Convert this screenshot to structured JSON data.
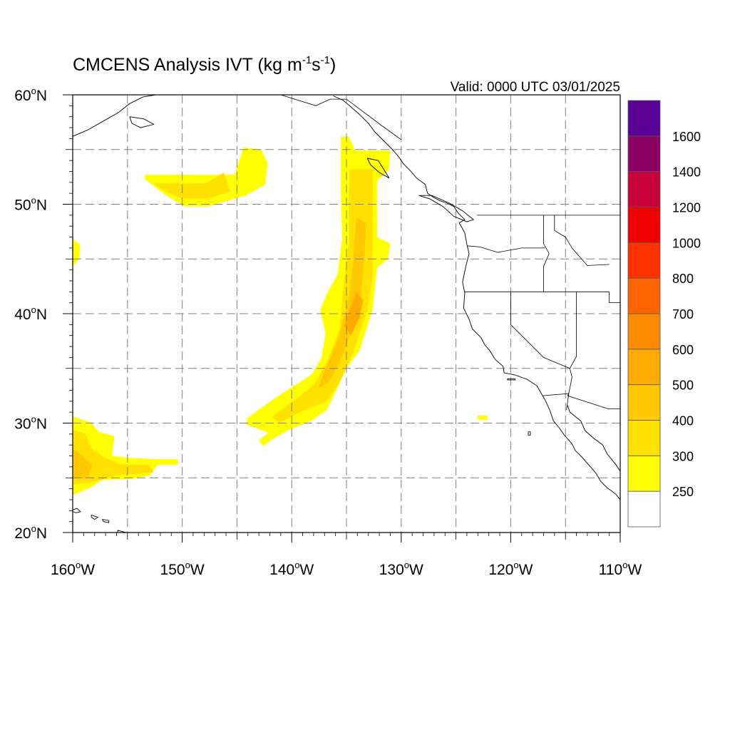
{
  "title": {
    "main": "CMCENS Analysis IVT (kg m",
    "sup1": "-1",
    "mid": "s",
    "sup2": "-1",
    "close": ")"
  },
  "valid_label": "Valid: 0000 UTC 03/01/2025",
  "colors": {
    "levels": [
      "#ffffff",
      "#ffff00",
      "#ffe100",
      "#ffc800",
      "#ffaa00",
      "#ff8c00",
      "#ff6400",
      "#ff3200",
      "#f00000",
      "#c8003c",
      "#8c0064",
      "#5a0096"
    ],
    "coast": "#000000",
    "grid": "#808080"
  },
  "chart_data": {
    "type": "heatmap",
    "variable": "IVT",
    "lon_range": [
      -160,
      -110
    ],
    "lat_range": [
      20,
      60
    ],
    "lat_ticks": [
      {
        "value": 60,
        "num": "60",
        "hem": "N"
      },
      {
        "value": 50,
        "num": "50",
        "hem": "N"
      },
      {
        "value": 40,
        "num": "40",
        "hem": "N"
      },
      {
        "value": 30,
        "num": "30",
        "hem": "N"
      },
      {
        "value": 20,
        "num": "20",
        "hem": "N"
      }
    ],
    "lon_ticks": [
      {
        "value": -160,
        "num": "160",
        "hem": "W"
      },
      {
        "value": -150,
        "num": "150",
        "hem": "W"
      },
      {
        "value": -140,
        "num": "140",
        "hem": "W"
      },
      {
        "value": -130,
        "num": "130",
        "hem": "W"
      },
      {
        "value": -120,
        "num": "120",
        "hem": "W"
      },
      {
        "value": -110,
        "num": "110",
        "hem": "W"
      }
    ],
    "colorbar_labels": [
      "250",
      "300",
      "400",
      "500",
      "600",
      "700",
      "800",
      "1000",
      "1200",
      "1400",
      "1600"
    ],
    "regions": [
      {
        "level": 1,
        "points": [
          [
            -153.4,
            52.7
          ],
          [
            -145.2,
            52.7
          ],
          [
            -144.4,
            55.2
          ],
          [
            -142.8,
            55.0
          ],
          [
            -142.2,
            53.8
          ],
          [
            -142.4,
            51.8
          ],
          [
            -144.2,
            50.8
          ],
          [
            -147.6,
            49.8
          ],
          [
            -149.8,
            49.8
          ],
          [
            -151.6,
            50.9
          ],
          [
            -153.4,
            52.3
          ]
        ]
      },
      {
        "level": 2,
        "points": [
          [
            -152.6,
            51.9
          ],
          [
            -147.9,
            51.9
          ],
          [
            -146.2,
            52.9
          ],
          [
            -145.6,
            51.2
          ],
          [
            -147.6,
            50.5
          ],
          [
            -150.0,
            50.5
          ],
          [
            -151.6,
            51.2
          ]
        ]
      },
      {
        "level": 1,
        "points": [
          [
            -160.0,
            46.8
          ],
          [
            -159.3,
            46.3
          ],
          [
            -159.4,
            45.0
          ],
          [
            -160.0,
            44.3
          ]
        ]
      },
      {
        "level": 1,
        "points": [
          [
            -135.5,
            56.2
          ],
          [
            -134.8,
            56.2
          ],
          [
            -134.2,
            54.9
          ],
          [
            -131.0,
            54.9
          ],
          [
            -131.1,
            53.2
          ],
          [
            -132.2,
            52.1
          ],
          [
            -132.2,
            47.0
          ],
          [
            -131.0,
            46.4
          ],
          [
            -131.2,
            45.0
          ],
          [
            -132.2,
            44.2
          ],
          [
            -132.6,
            40.4
          ],
          [
            -133.8,
            36.6
          ],
          [
            -135.0,
            35.0
          ],
          [
            -136.0,
            32.8
          ],
          [
            -136.8,
            31.2
          ],
          [
            -138.2,
            30.2
          ],
          [
            -140.4,
            29.3
          ],
          [
            -141.8,
            28.5
          ],
          [
            -142.6,
            27.9
          ],
          [
            -143.0,
            28.4
          ],
          [
            -142.1,
            29.1
          ],
          [
            -144.2,
            29.9
          ],
          [
            -144.0,
            30.5
          ],
          [
            -141.8,
            32.1
          ],
          [
            -139.8,
            33.4
          ],
          [
            -138.2,
            34.4
          ],
          [
            -137.3,
            35.9
          ],
          [
            -136.9,
            38.2
          ],
          [
            -137.4,
            40.3
          ],
          [
            -136.8,
            41.8
          ],
          [
            -135.8,
            43.6
          ],
          [
            -135.4,
            46.8
          ],
          [
            -135.5,
            50.8
          ]
        ]
      },
      {
        "level": 2,
        "points": [
          [
            -134.7,
            53.2
          ],
          [
            -132.6,
            53.2
          ],
          [
            -132.6,
            47.6
          ],
          [
            -132.6,
            43.4
          ],
          [
            -133.1,
            40.3
          ],
          [
            -134.4,
            36.4
          ],
          [
            -135.6,
            33.8
          ],
          [
            -136.8,
            32.0
          ],
          [
            -139.0,
            31.1
          ],
          [
            -141.2,
            30.0
          ],
          [
            -141.8,
            30.6
          ],
          [
            -139.7,
            32.1
          ],
          [
            -137.9,
            33.6
          ],
          [
            -136.7,
            35.8
          ],
          [
            -135.6,
            38.6
          ],
          [
            -135.3,
            42.2
          ],
          [
            -134.8,
            46.3
          ],
          [
            -134.8,
            50.8
          ]
        ]
      },
      {
        "level": 3,
        "points": [
          [
            -134.1,
            48.8
          ],
          [
            -133.2,
            48.3
          ],
          [
            -133.4,
            44.8
          ],
          [
            -133.7,
            41.3
          ],
          [
            -134.6,
            38.2
          ],
          [
            -135.6,
            35.6
          ],
          [
            -136.6,
            33.8
          ],
          [
            -137.6,
            33.1
          ],
          [
            -137.0,
            34.8
          ],
          [
            -135.8,
            37.6
          ],
          [
            -134.9,
            40.8
          ],
          [
            -134.4,
            44.6
          ]
        ]
      },
      {
        "level": 4,
        "points": [
          [
            -134.1,
            42.0
          ],
          [
            -133.5,
            41.2
          ],
          [
            -133.8,
            39.6
          ],
          [
            -134.6,
            38.0
          ],
          [
            -135.2,
            38.9
          ],
          [
            -134.6,
            40.6
          ]
        ]
      },
      {
        "level": 1,
        "points": [
          [
            -160.0,
            30.6
          ],
          [
            -158.4,
            30.1
          ],
          [
            -157.6,
            29.2
          ],
          [
            -156.2,
            28.8
          ],
          [
            -156.4,
            27.0
          ],
          [
            -154.6,
            26.8
          ],
          [
            -152.0,
            26.7
          ],
          [
            -150.4,
            26.7
          ],
          [
            -150.4,
            26.2
          ],
          [
            -152.2,
            26.2
          ],
          [
            -153.0,
            25.2
          ],
          [
            -154.6,
            24.9
          ],
          [
            -157.3,
            24.8
          ],
          [
            -158.4,
            24.1
          ],
          [
            -160.0,
            23.4
          ]
        ]
      },
      {
        "level": 2,
        "points": [
          [
            -160.0,
            29.4
          ],
          [
            -158.8,
            29.0
          ],
          [
            -158.3,
            27.7
          ],
          [
            -157.2,
            26.9
          ],
          [
            -155.6,
            26.2
          ],
          [
            -153.0,
            26.2
          ],
          [
            -152.6,
            25.5
          ],
          [
            -156.0,
            25.2
          ],
          [
            -158.2,
            24.6
          ],
          [
            -160.0,
            24.4
          ]
        ]
      },
      {
        "level": 3,
        "points": [
          [
            -160.0,
            27.6
          ],
          [
            -159.2,
            27.1
          ],
          [
            -158.2,
            26.2
          ],
          [
            -158.6,
            25.0
          ],
          [
            -160.0,
            24.9
          ]
        ]
      },
      {
        "level": 1,
        "points": [
          [
            -123.0,
            30.7
          ],
          [
            -122.1,
            30.7
          ],
          [
            -122.1,
            30.3
          ],
          [
            -123.0,
            30.3
          ]
        ]
      }
    ]
  },
  "coastlines": {
    "west_coast": [
      [
        -136.2,
        59.9
      ],
      [
        -135.3,
        59.5
      ],
      [
        -134.6,
        58.9
      ],
      [
        -133.8,
        58.2
      ],
      [
        -133.0,
        57.4
      ],
      [
        -132.4,
        56.6
      ],
      [
        -131.6,
        55.8
      ],
      [
        -130.8,
        55.0
      ],
      [
        -130.2,
        54.3
      ],
      [
        -129.8,
        53.7
      ],
      [
        -129.2,
        53.1
      ],
      [
        -128.6,
        52.4
      ],
      [
        -127.8,
        51.8
      ],
      [
        -127.6,
        51.0
      ],
      [
        -127.0,
        50.6
      ],
      [
        -126.4,
        50.3
      ],
      [
        -125.8,
        50.1
      ],
      [
        -125.2,
        49.8
      ],
      [
        -124.8,
        49.2
      ],
      [
        -124.2,
        48.6
      ],
      [
        -124.7,
        48.3
      ],
      [
        -124.2,
        47.4
      ],
      [
        -124.0,
        46.3
      ],
      [
        -123.8,
        45.5
      ],
      [
        -124.1,
        44.3
      ],
      [
        -124.4,
        42.9
      ],
      [
        -124.2,
        41.9
      ],
      [
        -124.3,
        40.5
      ],
      [
        -123.8,
        39.5
      ],
      [
        -123.5,
        38.6
      ],
      [
        -122.7,
        37.8
      ],
      [
        -122.4,
        37.2
      ],
      [
        -121.9,
        36.6
      ],
      [
        -121.4,
        35.8
      ],
      [
        -120.7,
        35.2
      ],
      [
        -120.6,
        34.6
      ],
      [
        -119.6,
        34.4
      ],
      [
        -118.5,
        34.0
      ],
      [
        -117.6,
        33.4
      ],
      [
        -117.2,
        32.7
      ],
      [
        -116.8,
        32.0
      ],
      [
        -116.4,
        31.1
      ],
      [
        -116.1,
        30.2
      ],
      [
        -115.6,
        29.6
      ],
      [
        -115.1,
        28.9
      ],
      [
        -114.4,
        28.1
      ],
      [
        -114.1,
        27.5
      ],
      [
        -113.5,
        26.9
      ],
      [
        -112.8,
        26.1
      ],
      [
        -112.2,
        25.4
      ],
      [
        -111.8,
        24.7
      ],
      [
        -111.2,
        24.1
      ],
      [
        -110.4,
        23.5
      ],
      [
        -110.0,
        23.0
      ]
    ],
    "gulf_coast": [
      [
        -114.8,
        31.6
      ],
      [
        -114.6,
        31.0
      ],
      [
        -113.6,
        30.2
      ],
      [
        -113.2,
        29.3
      ],
      [
        -112.4,
        28.6
      ],
      [
        -111.6,
        28.0
      ],
      [
        -111.2,
        27.2
      ],
      [
        -110.4,
        26.2
      ],
      [
        -110.0,
        25.6
      ]
    ],
    "alaska_north": [
      [
        -160.0,
        56.2
      ],
      [
        -158.6,
        56.8
      ],
      [
        -157.2,
        57.6
      ],
      [
        -155.8,
        58.4
      ],
      [
        -154.8,
        59.2
      ],
      [
        -153.6,
        59.8
      ],
      [
        -152.4,
        60.0
      ]
    ],
    "vancouver_island": [
      [
        -128.4,
        50.8
      ],
      [
        -127.4,
        50.5
      ],
      [
        -126.2,
        49.8
      ],
      [
        -125.2,
        48.9
      ],
      [
        -124.0,
        48.4
      ],
      [
        -123.4,
        48.6
      ],
      [
        -124.4,
        49.4
      ],
      [
        -125.6,
        50.1
      ],
      [
        -127.2,
        50.8
      ],
      [
        -128.4,
        50.8
      ]
    ],
    "haida_gwaii": [
      [
        -133.1,
        54.2
      ],
      [
        -132.1,
        54.0
      ],
      [
        -131.6,
        53.2
      ],
      [
        -131.1,
        52.4
      ],
      [
        -132.0,
        52.9
      ],
      [
        -132.8,
        53.6
      ],
      [
        -133.1,
        54.2
      ]
    ],
    "hawaii_niihau": [
      [
        -160.2,
        22.0
      ],
      [
        -159.6,
        22.2
      ],
      [
        -159.3,
        21.9
      ],
      [
        -159.7,
        21.8
      ],
      [
        -160.2,
        22.0
      ]
    ],
    "hawaii_oahu": [
      [
        -158.3,
        21.6
      ],
      [
        -157.7,
        21.4
      ],
      [
        -158.0,
        21.2
      ],
      [
        -158.3,
        21.4
      ],
      [
        -158.3,
        21.6
      ]
    ],
    "hawaii_molokai": [
      [
        -157.3,
        21.2
      ],
      [
        -156.7,
        21.1
      ],
      [
        -156.7,
        20.9
      ],
      [
        -157.2,
        21.0
      ],
      [
        -157.3,
        21.2
      ]
    ],
    "hawaii_big": [
      [
        -155.9,
        20.2
      ],
      [
        -155.1,
        20.0
      ],
      [
        -154.8,
        19.5
      ],
      [
        -155.6,
        19.0
      ],
      [
        -155.9,
        19.5
      ],
      [
        -155.9,
        20.2
      ]
    ],
    "kodiak": [
      [
        -154.8,
        58.0
      ],
      [
        -153.5,
        57.8
      ],
      [
        -152.6,
        57.3
      ],
      [
        -153.8,
        57.0
      ],
      [
        -154.6,
        57.4
      ],
      [
        -154.8,
        58.0
      ]
    ],
    "channel_islands": [
      [
        -120.3,
        34.05
      ],
      [
        -119.6,
        34.05
      ],
      [
        -119.6,
        33.95
      ],
      [
        -120.3,
        33.95
      ],
      [
        -120.3,
        34.05
      ]
    ],
    "guadalupe": [
      [
        -118.4,
        29.2
      ],
      [
        -118.2,
        29.2
      ],
      [
        -118.2,
        28.9
      ],
      [
        -118.4,
        28.9
      ],
      [
        -118.4,
        29.2
      ]
    ]
  },
  "borders": {
    "canada_us": [
      [
        -123.1,
        49.0
      ],
      [
        -110.0,
        49.0
      ]
    ],
    "bc_alaska": [
      [
        -141.0,
        60.0
      ],
      [
        -137.8,
        59.0
      ],
      [
        -136.5,
        59.6
      ],
      [
        -135.0,
        59.6
      ],
      [
        -133.4,
        58.4
      ],
      [
        -131.8,
        57.2
      ],
      [
        -130.0,
        55.9
      ]
    ],
    "us_mexico": [
      [
        -117.1,
        32.5
      ],
      [
        -114.7,
        32.7
      ],
      [
        -114.8,
        32.5
      ],
      [
        -111.1,
        31.3
      ],
      [
        -110.0,
        31.3
      ]
    ],
    "wa_or": [
      [
        -124.0,
        46.2
      ],
      [
        -122.8,
        46.1
      ],
      [
        -121.2,
        45.6
      ],
      [
        -119.0,
        46.0
      ],
      [
        -116.9,
        46.0
      ]
    ],
    "or_ca": [
      [
        -124.2,
        42.0
      ],
      [
        -117.0,
        42.0
      ]
    ],
    "id_east": [
      [
        -117.0,
        49.0
      ],
      [
        -117.0,
        46.4
      ],
      [
        -116.5,
        45.5
      ],
      [
        -117.0,
        44.3
      ],
      [
        -117.0,
        42.0
      ],
      [
        -111.0,
        42.0
      ]
    ],
    "ca_nv": [
      [
        -120.0,
        42.0
      ],
      [
        -120.0,
        39.0
      ],
      [
        -117.0,
        36.0
      ],
      [
        -114.6,
        35.0
      ]
    ],
    "nv_az": [
      [
        -114.0,
        42.0
      ],
      [
        -114.0,
        36.1
      ],
      [
        -114.6,
        35.0
      ]
    ],
    "az_ca": [
      [
        -114.6,
        35.0
      ],
      [
        -114.4,
        34.2
      ],
      [
        -114.7,
        32.7
      ]
    ],
    "ut_nv": [
      [
        -111.0,
        42.0
      ],
      [
        -111.0,
        41.0
      ],
      [
        -110.0,
        41.0
      ]
    ],
    "mt_id": [
      [
        -116.0,
        49.0
      ],
      [
        -116.0,
        47.6
      ],
      [
        -115.0,
        47.0
      ],
      [
        -114.4,
        46.0
      ],
      [
        -113.0,
        44.4
      ],
      [
        -111.0,
        44.5
      ]
    ],
    "sonora_bcn": [
      [
        -114.7,
        32.7
      ],
      [
        -114.9,
        31.2
      ]
    ]
  }
}
